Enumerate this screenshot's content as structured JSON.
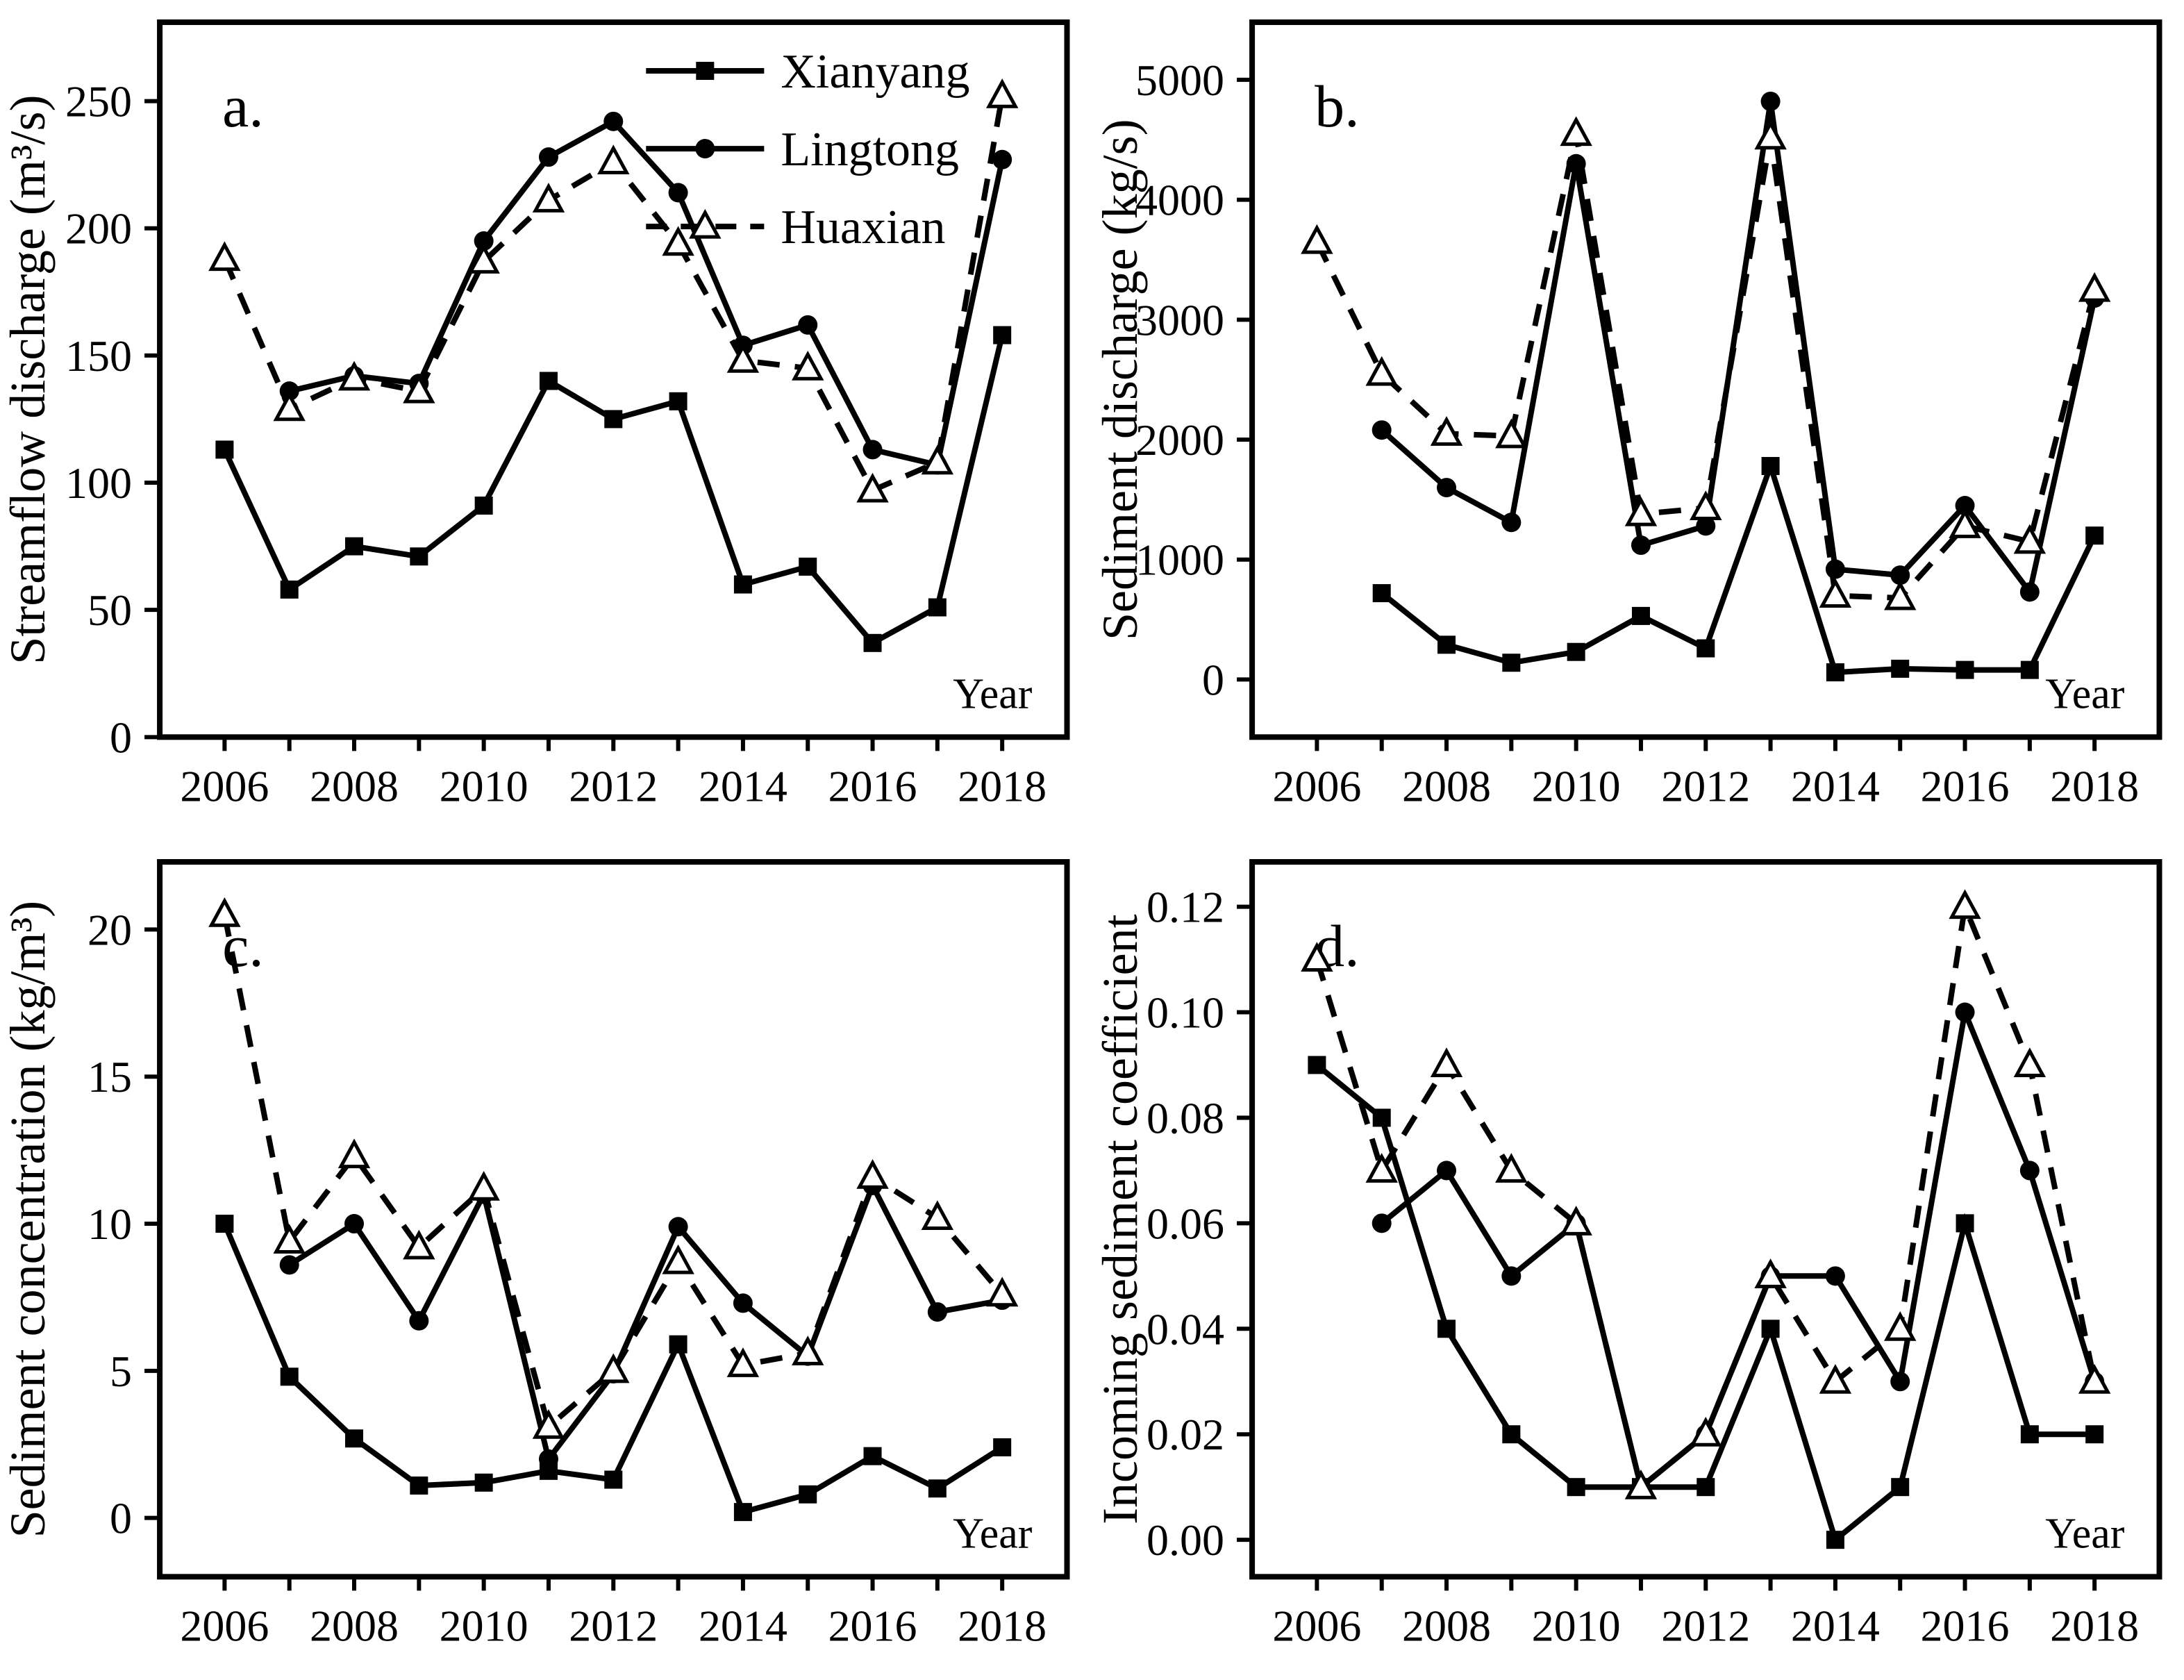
{
  "page": {
    "background": "#ffffff"
  },
  "style": {
    "axis_color": "#000000",
    "line_color": "#000000",
    "open_marker_fill": "#ffffff",
    "text_color": "#000000"
  },
  "legend": {
    "position": "top-right-panel-a",
    "items": [
      {
        "label": "Xianyang",
        "marker": "square",
        "fill": "filled",
        "line": "solid"
      },
      {
        "label": "Lingtong",
        "marker": "circle",
        "fill": "filled",
        "line": "solid"
      },
      {
        "label": "Huaxian",
        "marker": "triangle",
        "fill": "open",
        "line": "dashed"
      }
    ]
  },
  "chart_data": [
    {
      "id": "a",
      "type": "line",
      "panel_label": "a.",
      "ylabel": "Streamflow discharge (m³/s)",
      "year_label": "Year",
      "x": [
        2006,
        2007,
        2008,
        2009,
        2010,
        2011,
        2012,
        2013,
        2014,
        2015,
        2016,
        2017,
        2018
      ],
      "xtick_years": [
        2006,
        2008,
        2010,
        2012,
        2014,
        2016,
        2018
      ],
      "yticks": [
        0,
        50,
        100,
        150,
        200,
        250
      ],
      "ytick_labels": [
        "0",
        "50",
        "100",
        "150",
        "200",
        "250"
      ],
      "ylim_draw": [
        0,
        281
      ],
      "grid": false,
      "show_legend": true,
      "series": [
        {
          "name": "Xianyang",
          "marker": "square",
          "fill": "filled",
          "line": "solid",
          "values": [
            113,
            58,
            75,
            71,
            91,
            140,
            125,
            132,
            60,
            67,
            37,
            51,
            158
          ]
        },
        {
          "name": "Lingtong",
          "marker": "circle",
          "fill": "filled",
          "line": "solid",
          "values": [
            null,
            136,
            142,
            139,
            195,
            228,
            242,
            214,
            154,
            162,
            113,
            107,
            227
          ]
        },
        {
          "name": "Huaxian",
          "marker": "triangle",
          "fill": "open",
          "line": "dashed",
          "values": [
            188,
            129,
            141,
            136,
            187,
            211,
            226,
            194,
            148,
            145,
            97,
            108,
            252
          ]
        }
      ]
    },
    {
      "id": "b",
      "type": "line",
      "panel_label": "b.",
      "ylabel": "Sediment discharge (kg/s)",
      "year_label": "Year",
      "x": [
        2006,
        2007,
        2008,
        2009,
        2010,
        2011,
        2012,
        2013,
        2014,
        2015,
        2016,
        2017,
        2018
      ],
      "xtick_years": [
        2006,
        2008,
        2010,
        2012,
        2014,
        2016,
        2018
      ],
      "yticks": [
        0,
        1000,
        2000,
        3000,
        4000,
        5000
      ],
      "ytick_labels": [
        "0",
        "1000",
        "2000",
        "3000",
        "4000",
        "5000"
      ],
      "ylim_draw": [
        -480,
        5480
      ],
      "grid": false,
      "show_legend": false,
      "series": [
        {
          "name": "Xianyang",
          "marker": "square",
          "fill": "filled",
          "line": "solid",
          "values": [
            null,
            720,
            290,
            140,
            230,
            530,
            260,
            1780,
            60,
            90,
            80,
            80,
            1200
          ]
        },
        {
          "name": "Lingtong",
          "marker": "circle",
          "fill": "filled",
          "line": "solid",
          "values": [
            null,
            2080,
            1600,
            1310,
            4300,
            1120,
            1280,
            4820,
            920,
            870,
            1450,
            730,
            3180
          ]
        },
        {
          "name": "Huaxian",
          "marker": "triangle",
          "fill": "open",
          "line": "dashed",
          "values": [
            3650,
            2550,
            2050,
            2030,
            4550,
            1380,
            1430,
            4520,
            700,
            680,
            1280,
            1150,
            3250
          ]
        }
      ]
    },
    {
      "id": "c",
      "type": "line",
      "panel_label": "c.",
      "ylabel": "Sediment concentration (kg/m³)",
      "year_label": "Year",
      "x": [
        2006,
        2007,
        2008,
        2009,
        2010,
        2011,
        2012,
        2013,
        2014,
        2015,
        2016,
        2017,
        2018
      ],
      "xtick_years": [
        2006,
        2008,
        2010,
        2012,
        2014,
        2016,
        2018
      ],
      "yticks": [
        0,
        5,
        10,
        15,
        20
      ],
      "ytick_labels": [
        "0",
        "5",
        "10",
        "15",
        "20"
      ],
      "ylim_draw": [
        -2,
        22.3
      ],
      "grid": false,
      "show_legend": false,
      "series": [
        {
          "name": "Xianyang",
          "marker": "square",
          "fill": "filled",
          "line": "solid",
          "values": [
            10.0,
            4.8,
            2.7,
            1.1,
            1.2,
            1.6,
            1.3,
            5.9,
            0.2,
            0.8,
            2.1,
            1.0,
            2.4
          ]
        },
        {
          "name": "Lingtong",
          "marker": "circle",
          "fill": "filled",
          "line": "solid",
          "values": [
            null,
            8.6,
            10.0,
            6.7,
            11.0,
            2.0,
            4.9,
            9.9,
            7.3,
            5.5,
            11.3,
            7.0,
            7.4
          ]
        },
        {
          "name": "Huaxian",
          "marker": "triangle",
          "fill": "open",
          "line": "dashed",
          "values": [
            20.5,
            9.4,
            12.3,
            9.2,
            11.2,
            3.1,
            5.0,
            8.7,
            5.2,
            5.6,
            11.6,
            10.2,
            7.6
          ]
        }
      ]
    },
    {
      "id": "d",
      "type": "line",
      "panel_label": "d.",
      "ylabel": "Incoming sediment coefficient",
      "year_label": "Year",
      "x": [
        2006,
        2007,
        2008,
        2009,
        2010,
        2011,
        2012,
        2013,
        2014,
        2015,
        2016,
        2017,
        2018
      ],
      "xtick_years": [
        2006,
        2008,
        2010,
        2012,
        2014,
        2016,
        2018
      ],
      "yticks": [
        0.0,
        0.02,
        0.04,
        0.06,
        0.08,
        0.1,
        0.12
      ],
      "ytick_labels": [
        "0.00",
        "0.02",
        "0.04",
        "0.06",
        "0.08",
        "0.10",
        "0.12"
      ],
      "ylim_draw": [
        -0.007,
        0.1285
      ],
      "grid": false,
      "show_legend": false,
      "series": [
        {
          "name": "Xianyang",
          "marker": "square",
          "fill": "filled",
          "line": "solid",
          "values": [
            0.09,
            0.08,
            0.04,
            0.02,
            0.01,
            0.01,
            0.01,
            0.04,
            0.0,
            0.01,
            0.06,
            0.02,
            0.02
          ]
        },
        {
          "name": "Lingtong",
          "marker": "circle",
          "fill": "filled",
          "line": "solid",
          "values": [
            null,
            0.06,
            0.07,
            0.05,
            0.06,
            0.01,
            0.02,
            0.05,
            0.05,
            0.03,
            0.1,
            0.07,
            0.03
          ]
        },
        {
          "name": "Huaxian",
          "marker": "triangle",
          "fill": "open",
          "line": "dashed",
          "values": [
            0.11,
            0.07,
            0.09,
            0.07,
            0.06,
            0.01,
            0.02,
            0.05,
            0.03,
            0.04,
            0.12,
            0.09,
            0.03
          ]
        }
      ]
    }
  ]
}
